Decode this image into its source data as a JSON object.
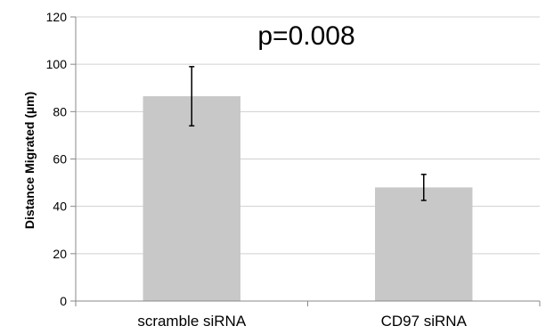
{
  "chart_data": {
    "type": "bar",
    "title": "",
    "xlabel": "",
    "ylabel": "Distance Migrated (µm)",
    "ylim": [
      0,
      120
    ],
    "yticks": [
      0,
      20,
      40,
      60,
      80,
      100,
      120
    ],
    "grid": true,
    "categories": [
      "scramble siRNA",
      "CD97 siRNA"
    ],
    "values": [
      86.5,
      48
    ],
    "error_low": [
      74,
      42.5
    ],
    "error_high": [
      99,
      53.5
    ],
    "annotation": "p=0.008",
    "bar_color": "#c8c8c8",
    "gridline_color": "#d0d0d0",
    "axis_color": "#888888"
  }
}
